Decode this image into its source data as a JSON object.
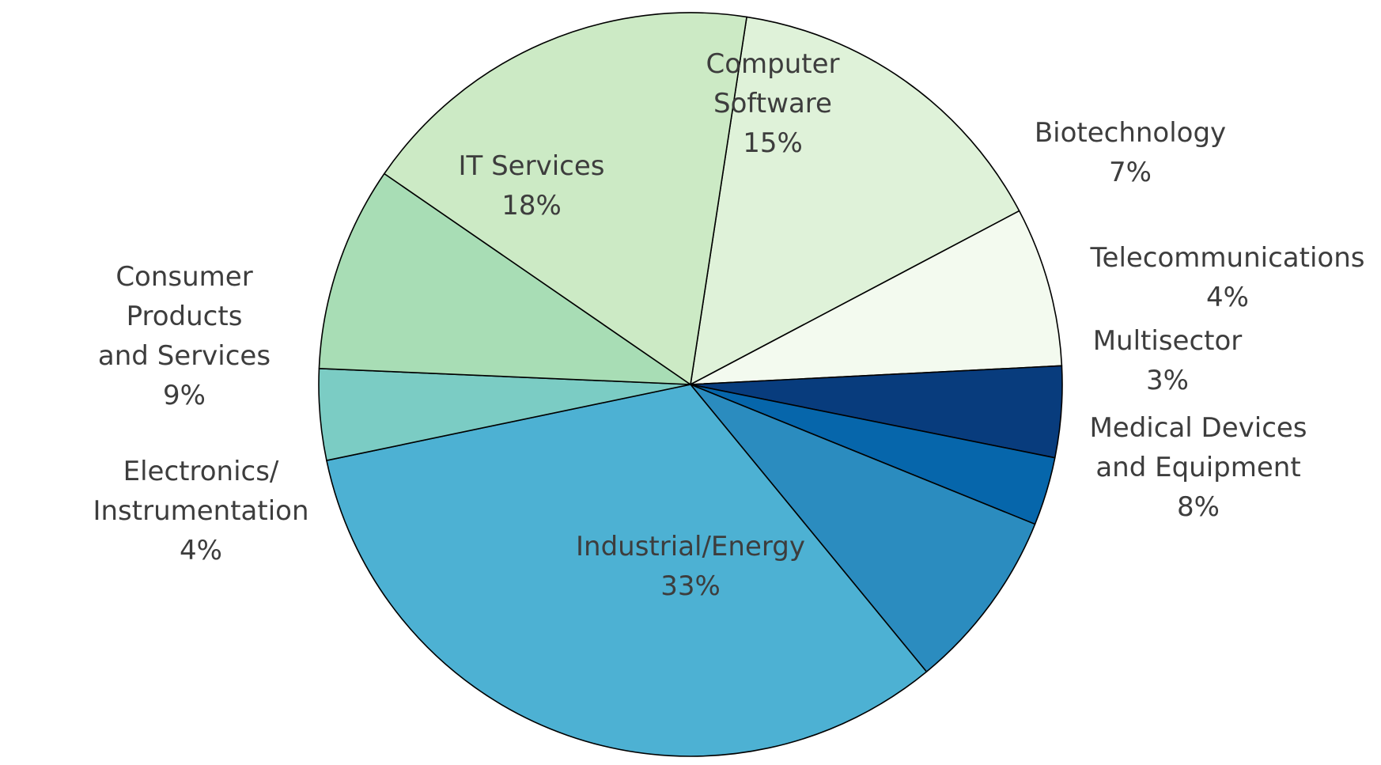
{
  "chart_data": {
    "type": "pie",
    "title": "",
    "slices": [
      {
        "name": "Computer Software",
        "label_lines": [
          "Computer",
          "Software"
        ],
        "value": 15,
        "value_label": "15%",
        "color": "#dff2d9"
      },
      {
        "name": "Biotechnology",
        "label_lines": [
          "Biotechnology"
        ],
        "value": 7,
        "value_label": "7%",
        "color": "#f3faef"
      },
      {
        "name": "Telecommunications",
        "label_lines": [
          "Telecommunications"
        ],
        "value": 4,
        "value_label": "4%",
        "color": "#083c7d"
      },
      {
        "name": "Multisector",
        "label_lines": [
          "Multisector"
        ],
        "value": 3,
        "value_label": "3%",
        "color": "#0666ab"
      },
      {
        "name": "Medical Devices and Equipment",
        "label_lines": [
          "Medical Devices",
          "and Equipment"
        ],
        "value": 8,
        "value_label": "8%",
        "color": "#2b8cbf"
      },
      {
        "name": "Industrial/Energy",
        "label_lines": [
          "Industrial/Energy"
        ],
        "value": 33,
        "value_label": "33%",
        "color": "#4db1d3"
      },
      {
        "name": "Electronics/Instrumentation",
        "label_lines": [
          "Electronics/",
          "Instrumentation"
        ],
        "value": 4,
        "value_label": "4%",
        "color": "#7bccc4"
      },
      {
        "name": "Consumer Products and Services",
        "label_lines": [
          "Consumer",
          "Products",
          "and Services"
        ],
        "value": 9,
        "value_label": "9%",
        "color": "#a8ddb5"
      },
      {
        "name": "IT Services",
        "label_lines": [
          "IT Services"
        ],
        "value": 18,
        "value_label": "18%",
        "color": "#cceac5"
      }
    ]
  }
}
